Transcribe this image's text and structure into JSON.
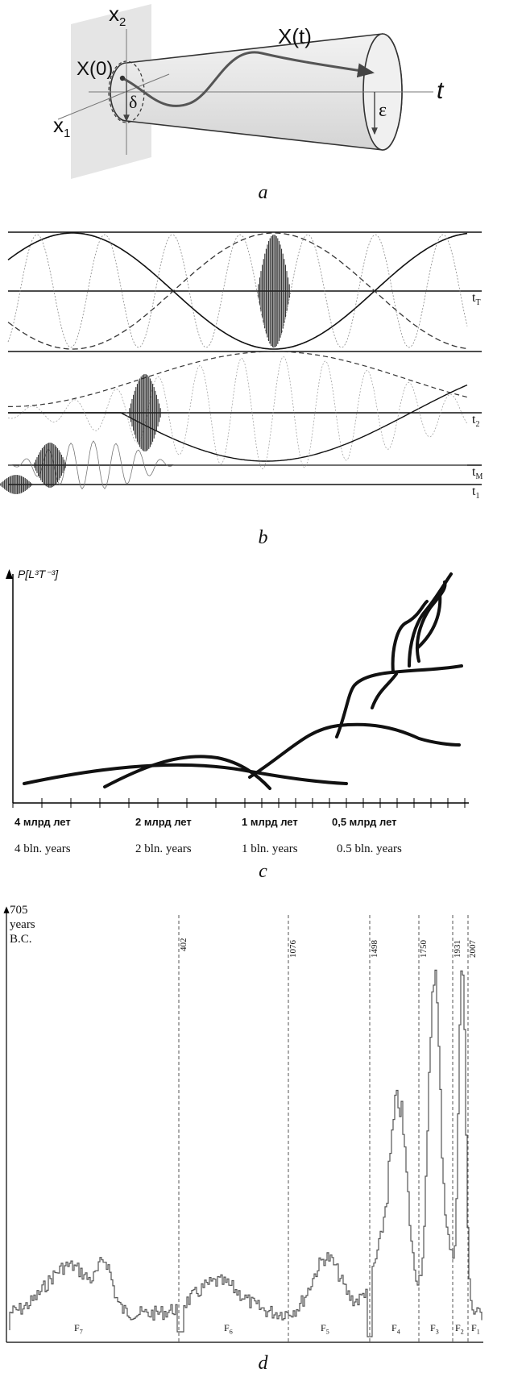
{
  "panel_a": {
    "caption": "a",
    "labels": {
      "x2": "x",
      "x2_sub": "2",
      "x1": "x",
      "x1_sub": "1",
      "x0": "X(0)",
      "xt": "X(t)",
      "t": "t",
      "delta": "δ",
      "eps": "ε"
    }
  },
  "panel_b": {
    "caption": "b",
    "axis_labels": [
      "t",
      "t",
      "t",
      "t"
    ],
    "axis_subs": [
      "T",
      "2",
      "M",
      "1"
    ]
  },
  "panel_c": {
    "caption": "c",
    "ylabel": "P[L³T⁻³]",
    "ticks_ru": [
      "4 млрд  лет",
      "2 млрд  лет",
      "1 млрд  лет",
      "0,5 млрд  лет"
    ],
    "ticks_en": [
      "4 bln. years",
      "2 bln. years",
      "1 bln. years",
      "0.5 bln. years"
    ]
  },
  "panel_d": {
    "caption": "d",
    "top_label": [
      "705",
      "years",
      "B.C."
    ],
    "year_marks": [
      "402",
      "1076",
      "1498",
      "1750",
      "1931",
      "2007"
    ],
    "segments": [
      "F",
      "F",
      "F",
      "F",
      "F",
      "F",
      "F"
    ],
    "segment_subs": [
      "7",
      "6",
      "5",
      "4",
      "3",
      "2",
      "1"
    ]
  }
}
